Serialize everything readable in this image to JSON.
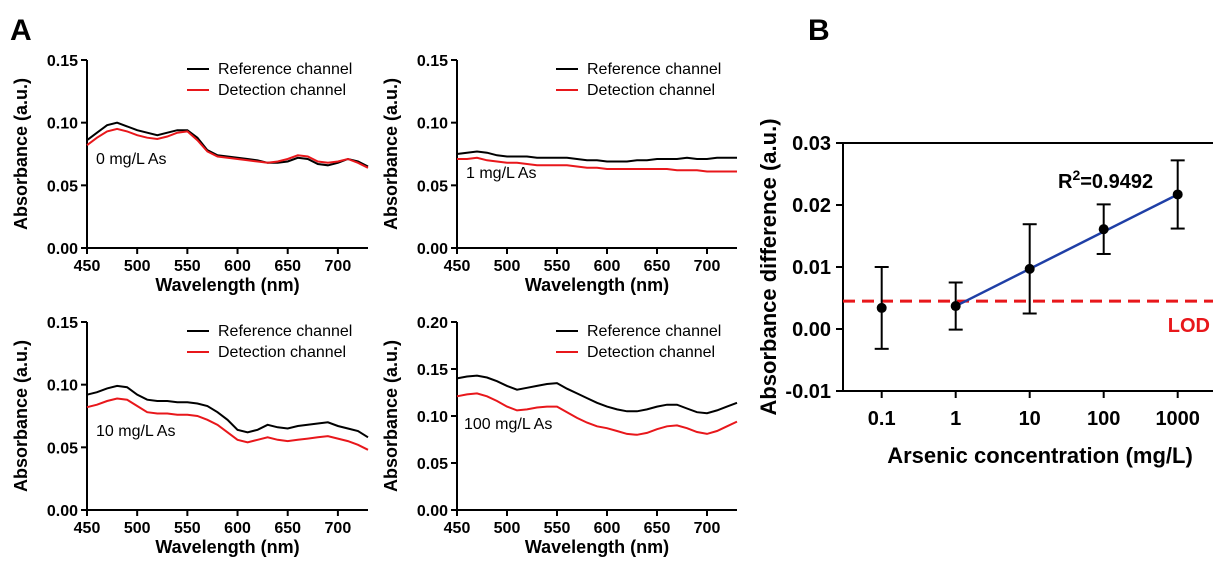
{
  "panel_labels": {
    "a": "A",
    "b": "B"
  },
  "colors": {
    "reference": "#000000",
    "detection": "#e8171b",
    "fit": "#1f3fa6",
    "lod": "#e8171b",
    "points": "#000000"
  },
  "chart_data": [
    {
      "type": "line",
      "annotation": "0 mg/L As",
      "xlabel": "Wavelength (nm)",
      "ylabel": "Absorbance (a.u.)",
      "xlim": [
        450,
        730
      ],
      "ylim": [
        0,
        0.15
      ],
      "xticks": [
        "450",
        "500",
        "550",
        "600",
        "650",
        "700"
      ],
      "yticks": [
        "0.00",
        "0.05",
        "0.10",
        "0.15"
      ],
      "legend": [
        "Reference channel",
        "Detection channel"
      ],
      "legend_position": "top-right",
      "x": [
        450,
        460,
        470,
        480,
        490,
        500,
        510,
        520,
        530,
        540,
        550,
        560,
        570,
        580,
        590,
        600,
        610,
        620,
        630,
        640,
        650,
        660,
        670,
        680,
        690,
        700,
        710,
        720,
        730
      ],
      "series": [
        {
          "name": "Reference channel",
          "values": [
            0.086,
            0.092,
            0.098,
            0.1,
            0.097,
            0.094,
            0.092,
            0.09,
            0.092,
            0.094,
            0.094,
            0.088,
            0.078,
            0.074,
            0.073,
            0.072,
            0.071,
            0.07,
            0.068,
            0.068,
            0.069,
            0.072,
            0.071,
            0.067,
            0.066,
            0.068,
            0.071,
            0.069,
            0.065
          ]
        },
        {
          "name": "Detection channel",
          "values": [
            0.082,
            0.088,
            0.093,
            0.095,
            0.093,
            0.09,
            0.088,
            0.087,
            0.089,
            0.092,
            0.093,
            0.086,
            0.077,
            0.073,
            0.072,
            0.071,
            0.07,
            0.069,
            0.068,
            0.069,
            0.071,
            0.074,
            0.073,
            0.069,
            0.068,
            0.069,
            0.071,
            0.068,
            0.064
          ]
        }
      ]
    },
    {
      "type": "line",
      "annotation": "1 mg/L As",
      "xlabel": "Wavelength (nm)",
      "ylabel": "Absorbance (a.u.)",
      "xlim": [
        450,
        730
      ],
      "ylim": [
        0,
        0.15
      ],
      "xticks": [
        "450",
        "500",
        "550",
        "600",
        "650",
        "700"
      ],
      "yticks": [
        "0.00",
        "0.05",
        "0.10",
        "0.15"
      ],
      "legend": [
        "Reference channel",
        "Detection channel"
      ],
      "legend_position": "top-right",
      "x": [
        450,
        460,
        470,
        480,
        490,
        500,
        510,
        520,
        530,
        540,
        550,
        560,
        570,
        580,
        590,
        600,
        610,
        620,
        630,
        640,
        650,
        660,
        670,
        680,
        690,
        700,
        710,
        720,
        730
      ],
      "series": [
        {
          "name": "Reference channel",
          "values": [
            0.075,
            0.076,
            0.077,
            0.076,
            0.074,
            0.073,
            0.073,
            0.073,
            0.072,
            0.072,
            0.072,
            0.072,
            0.071,
            0.07,
            0.07,
            0.069,
            0.069,
            0.069,
            0.07,
            0.07,
            0.071,
            0.071,
            0.071,
            0.072,
            0.071,
            0.071,
            0.072,
            0.072,
            0.072
          ]
        },
        {
          "name": "Detection channel",
          "values": [
            0.071,
            0.071,
            0.072,
            0.07,
            0.069,
            0.068,
            0.068,
            0.067,
            0.066,
            0.066,
            0.066,
            0.066,
            0.065,
            0.064,
            0.064,
            0.063,
            0.063,
            0.063,
            0.063,
            0.063,
            0.063,
            0.063,
            0.062,
            0.062,
            0.062,
            0.061,
            0.061,
            0.061,
            0.061
          ]
        }
      ]
    },
    {
      "type": "line",
      "annotation": "10 mg/L As",
      "xlabel": "Wavelength (nm)",
      "ylabel": "Absorbance (a.u.)",
      "xlim": [
        450,
        730
      ],
      "ylim": [
        0,
        0.15
      ],
      "xticks": [
        "450",
        "500",
        "550",
        "600",
        "650",
        "700"
      ],
      "yticks": [
        "0.00",
        "0.05",
        "0.10",
        "0.15"
      ],
      "legend": [
        "Reference channel",
        "Detection channel"
      ],
      "legend_position": "top-right",
      "x": [
        450,
        460,
        470,
        480,
        490,
        500,
        510,
        520,
        530,
        540,
        550,
        560,
        570,
        580,
        590,
        600,
        610,
        620,
        630,
        640,
        650,
        660,
        670,
        680,
        690,
        700,
        710,
        720,
        730
      ],
      "series": [
        {
          "name": "Reference channel",
          "values": [
            0.092,
            0.094,
            0.097,
            0.099,
            0.098,
            0.092,
            0.088,
            0.087,
            0.087,
            0.086,
            0.086,
            0.085,
            0.083,
            0.078,
            0.072,
            0.064,
            0.062,
            0.064,
            0.068,
            0.066,
            0.065,
            0.067,
            0.068,
            0.069,
            0.07,
            0.067,
            0.065,
            0.063,
            0.058
          ]
        },
        {
          "name": "Detection channel",
          "values": [
            0.082,
            0.084,
            0.087,
            0.089,
            0.088,
            0.083,
            0.078,
            0.077,
            0.077,
            0.076,
            0.076,
            0.075,
            0.072,
            0.068,
            0.062,
            0.056,
            0.054,
            0.056,
            0.058,
            0.056,
            0.055,
            0.056,
            0.057,
            0.058,
            0.059,
            0.057,
            0.055,
            0.052,
            0.048
          ]
        }
      ]
    },
    {
      "type": "line",
      "annotation": "100 mg/L As",
      "xlabel": "Wavelength (nm)",
      "ylabel": "Absorbance (a.u.)",
      "xlim": [
        450,
        730
      ],
      "ylim": [
        0,
        0.2
      ],
      "xticks": [
        "450",
        "500",
        "550",
        "600",
        "650",
        "700"
      ],
      "yticks": [
        "0.00",
        "0.05",
        "0.10",
        "0.15",
        "0.20"
      ],
      "legend": [
        "Reference channel",
        "Detection channel"
      ],
      "legend_position": "top-right",
      "x": [
        450,
        460,
        470,
        480,
        490,
        500,
        510,
        520,
        530,
        540,
        550,
        560,
        570,
        580,
        590,
        600,
        610,
        620,
        630,
        640,
        650,
        660,
        670,
        680,
        690,
        700,
        710,
        720,
        730
      ],
      "series": [
        {
          "name": "Reference channel",
          "values": [
            0.14,
            0.142,
            0.143,
            0.141,
            0.137,
            0.132,
            0.128,
            0.13,
            0.132,
            0.134,
            0.135,
            0.129,
            0.124,
            0.119,
            0.114,
            0.11,
            0.107,
            0.105,
            0.105,
            0.107,
            0.11,
            0.112,
            0.112,
            0.108,
            0.104,
            0.103,
            0.106,
            0.11,
            0.114
          ]
        },
        {
          "name": "Detection channel",
          "values": [
            0.121,
            0.123,
            0.124,
            0.121,
            0.116,
            0.11,
            0.106,
            0.107,
            0.109,
            0.11,
            0.11,
            0.104,
            0.098,
            0.093,
            0.089,
            0.087,
            0.084,
            0.081,
            0.08,
            0.082,
            0.086,
            0.089,
            0.09,
            0.087,
            0.083,
            0.081,
            0.084,
            0.089,
            0.094
          ]
        }
      ]
    },
    {
      "type": "scatter",
      "xlabel": "Arsenic concentration (mg/L)",
      "ylabel": "Absorbance difference (a.u.)",
      "x_scale": "log",
      "xlim": [
        0.03,
        3000
      ],
      "ylim": [
        -0.01,
        0.03
      ],
      "xticks": [
        "0.1",
        "1",
        "10",
        "100",
        "1000"
      ],
      "yticks": [
        "-0.01",
        "0.00",
        "0.01",
        "0.02",
        "0.03"
      ],
      "x": [
        0.1,
        1,
        10,
        100,
        1000
      ],
      "y": [
        0.0034,
        0.0037,
        0.0097,
        0.0161,
        0.0217
      ],
      "error": [
        0.0066,
        0.0038,
        0.0072,
        0.004,
        0.0055
      ],
      "fit": {
        "x": [
          1,
          1000
        ],
        "y": [
          0.0037,
          0.0217
        ],
        "r2_label": "R",
        "r2_sup": "2",
        "r2_value": "=0.9492"
      },
      "lod": {
        "value": 0.0045,
        "label": "LOD"
      }
    }
  ]
}
